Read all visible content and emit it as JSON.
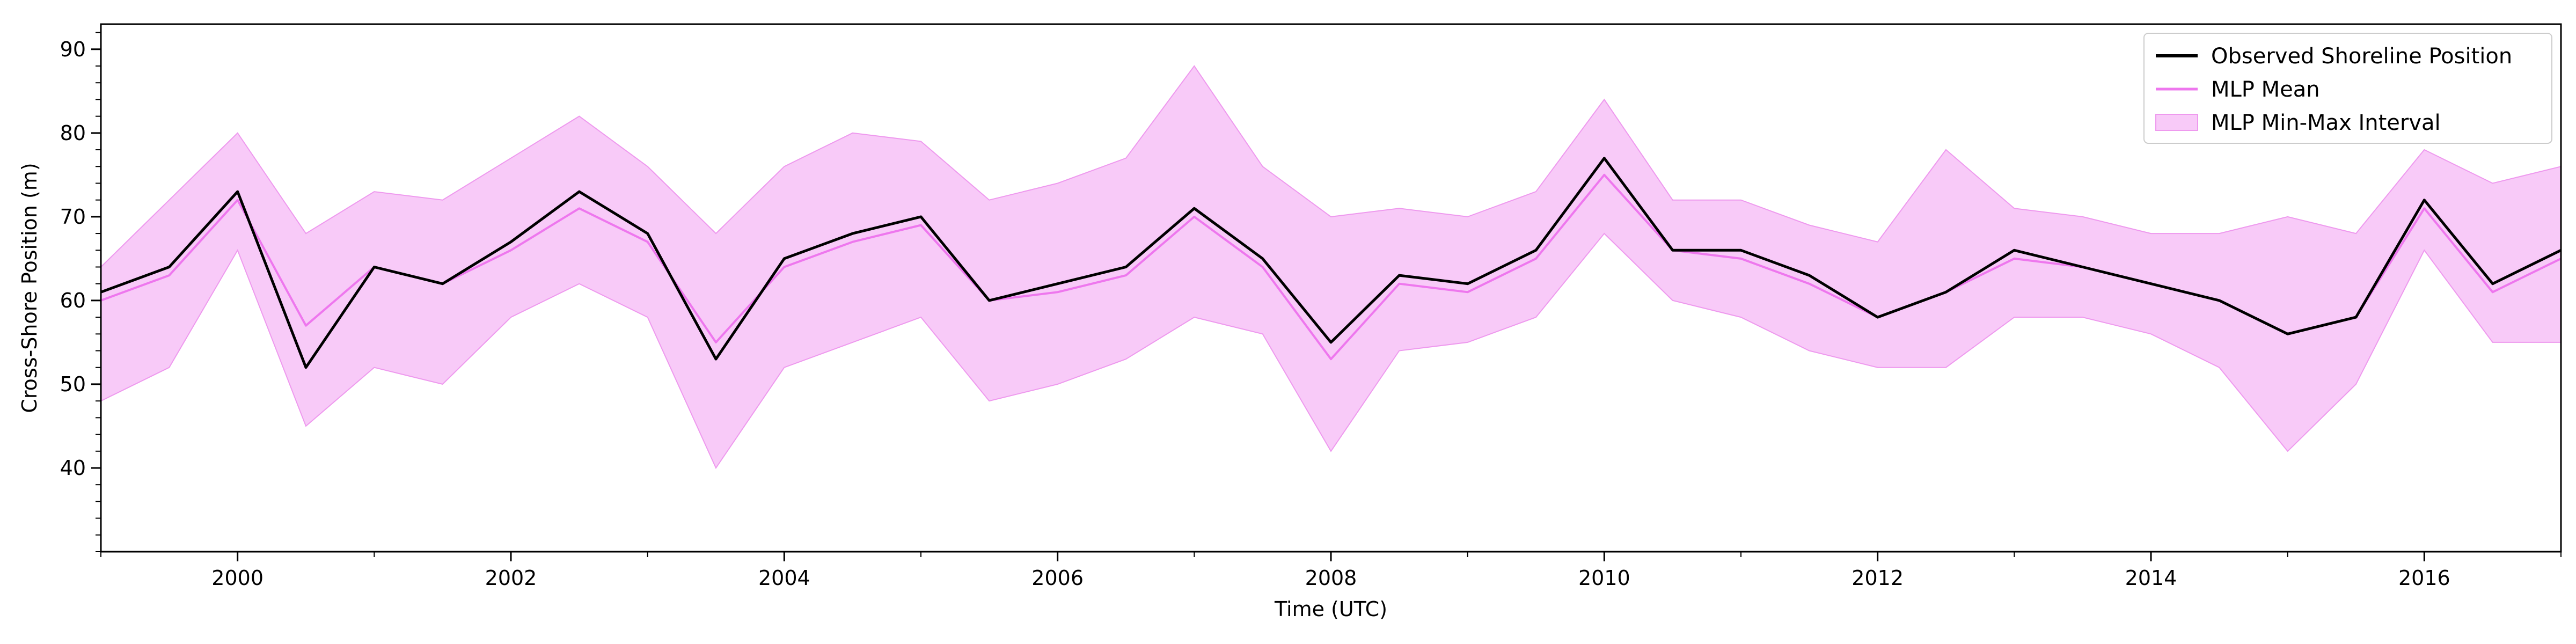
{
  "chart_data": {
    "type": "line",
    "title": "",
    "xlabel": "Time (UTC)",
    "ylabel": "Cross-Shore Position (m)",
    "xlim": [
      "1999-01-01",
      "2017-01-01"
    ],
    "ylim": [
      30,
      93
    ],
    "x_ticks": [
      "2000",
      "2002",
      "2004",
      "2006",
      "2008",
      "2010",
      "2012",
      "2014",
      "2016"
    ],
    "y_ticks": [
      "40",
      "50",
      "60",
      "70",
      "80",
      "90"
    ],
    "grid": false,
    "legend_position": "top-right",
    "legend": [
      "Observed Shoreline Position",
      "MLP Mean",
      "MLP Min-Max Interval"
    ],
    "colors": {
      "observed": "#000000",
      "mean": "#ee77ee",
      "interval": "#f5b8f5",
      "interval_edge": "#ee99ee"
    },
    "x": [
      "1999-01",
      "1999-07",
      "2000-01",
      "2000-07",
      "2001-01",
      "2001-07",
      "2002-01",
      "2002-07",
      "2003-01",
      "2003-07",
      "2004-01",
      "2004-07",
      "2005-01",
      "2005-07",
      "2006-01",
      "2006-07",
      "2007-01",
      "2007-07",
      "2008-01",
      "2008-07",
      "2009-01",
      "2009-07",
      "2010-01",
      "2010-07",
      "2011-01",
      "2011-07",
      "2012-01",
      "2012-07",
      "2013-01",
      "2013-07",
      "2014-01",
      "2014-07",
      "2015-01",
      "2015-07",
      "2016-01",
      "2016-07",
      "2017-01"
    ],
    "series": [
      {
        "name": "Observed Shoreline Position",
        "values": [
          61,
          64,
          73,
          52,
          64,
          62,
          67,
          73,
          68,
          53,
          65,
          68,
          70,
          60,
          62,
          64,
          71,
          65,
          55,
          63,
          62,
          66,
          77,
          66,
          66,
          63,
          58,
          61,
          66,
          64,
          62,
          60,
          56,
          58,
          72,
          62,
          66
        ]
      },
      {
        "name": "MLP Mean",
        "values": [
          60,
          63,
          72,
          57,
          64,
          62,
          66,
          71,
          67,
          55,
          64,
          67,
          69,
          60,
          61,
          63,
          70,
          64,
          53,
          62,
          61,
          65,
          75,
          66,
          65,
          62,
          58,
          61,
          65,
          64,
          62,
          60,
          56,
          58,
          71,
          61,
          65
        ]
      },
      {
        "name": "MLP Min",
        "values": [
          48,
          52,
          66,
          45,
          52,
          50,
          58,
          62,
          58,
          40,
          52,
          55,
          58,
          48,
          50,
          53,
          58,
          56,
          42,
          54,
          55,
          58,
          68,
          60,
          58,
          54,
          52,
          52,
          58,
          58,
          56,
          52,
          42,
          50,
          66,
          55,
          55
        ]
      },
      {
        "name": "MLP Max",
        "values": [
          64,
          72,
          80,
          68,
          73,
          72,
          77,
          82,
          76,
          68,
          76,
          80,
          79,
          72,
          74,
          77,
          88,
          76,
          70,
          71,
          70,
          73,
          84,
          72,
          72,
          69,
          67,
          78,
          71,
          70,
          68,
          68,
          70,
          68,
          78,
          74,
          76
        ]
      }
    ]
  }
}
